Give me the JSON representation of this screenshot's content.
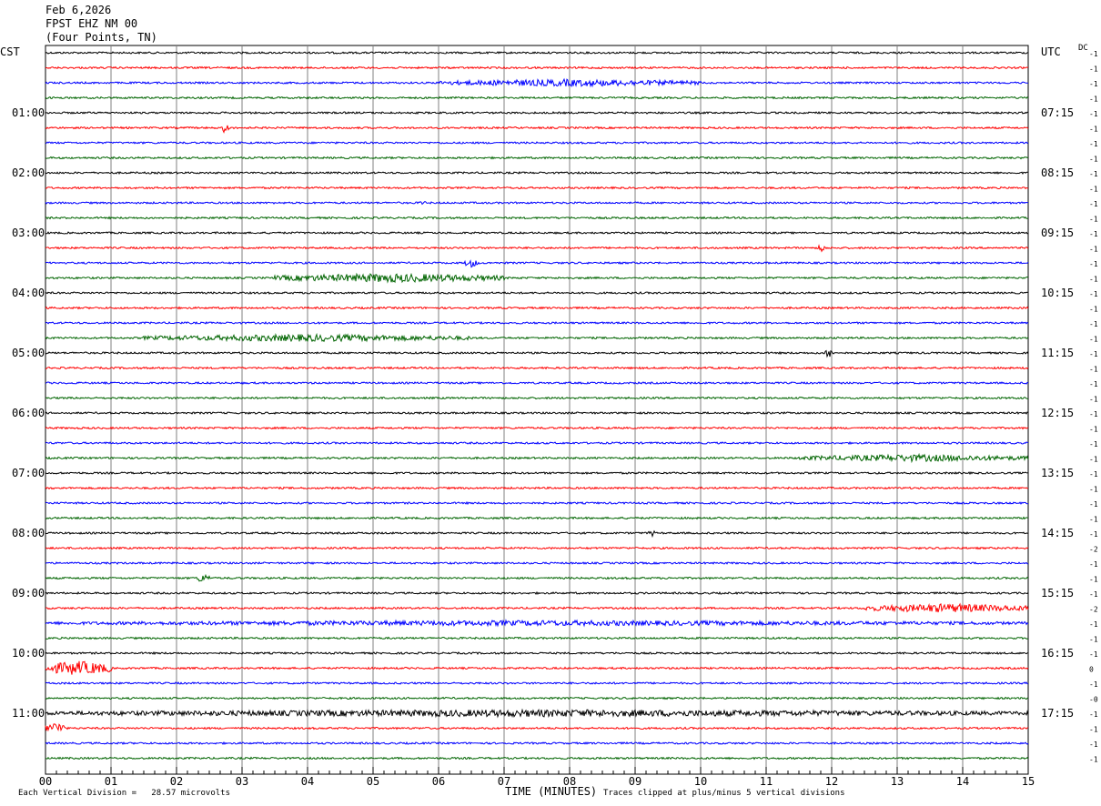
{
  "header": {
    "date": "Feb 6,2026",
    "station": "FPST EHZ NM 00",
    "location": "(Four Points, TN)"
  },
  "left_timezone": "CST",
  "right_timezone": "UTC",
  "dc_label": "DC",
  "footer": {
    "scale_note": "Each Vertical Division =   28.57 microvolts",
    "xlabel": "TIME (MINUTES)",
    "clip_note": "Traces clipped at plus/minus 5 vertical divisions"
  },
  "colors": {
    "black": "#000000",
    "red": "#ff0000",
    "blue": "#0000ff",
    "green": "#006400",
    "grid": "#808080"
  },
  "chart_data": {
    "type": "line",
    "xlabel": "TIME (MINUTES)",
    "xlim": [
      0,
      15
    ],
    "x_ticks": [
      "00",
      "01",
      "02",
      "03",
      "04",
      "05",
      "06",
      "07",
      "08",
      "09",
      "10",
      "11",
      "12",
      "13",
      "14",
      "15"
    ],
    "trace_colors": [
      "black",
      "red",
      "blue",
      "green"
    ],
    "trace_count": 48,
    "left_hour_labels": [
      "01:00",
      "02:00",
      "03:00",
      "04:00",
      "05:00",
      "06:00",
      "07:00",
      "08:00",
      "09:00",
      "10:00",
      "11:00"
    ],
    "right_hour_labels": [
      "07:15",
      "08:15",
      "09:15",
      "10:15",
      "11:15",
      "12:15",
      "13:15",
      "14:15",
      "15:15",
      "16:15",
      "17:15"
    ],
    "dc_offsets": [
      "-1",
      "-1",
      "-1",
      "-1",
      "-1",
      "-1",
      "-1",
      "-1",
      "-1",
      "-1",
      "-1",
      "-1",
      "-1",
      "-1",
      "-1",
      "-1",
      "-1",
      "-1",
      "-1",
      "-1",
      "-1",
      "-1",
      "-1",
      "-1",
      "-1",
      "-1",
      "-1",
      "-1",
      "-1",
      "-1",
      "-1",
      "-1",
      "-1",
      "-2",
      "-1",
      "-1",
      "-1",
      "-2",
      "-1",
      "-1",
      "-1",
      "0",
      "-1",
      "-0",
      "-1",
      "-1",
      "-1",
      "-1"
    ],
    "events": [
      {
        "trace": 2,
        "start": 6.0,
        "end": 10.0,
        "amp": 4
      },
      {
        "trace": 5,
        "start": 2.7,
        "end": 2.8,
        "amp": 7
      },
      {
        "trace": 10,
        "start": 5.7,
        "end": 5.8,
        "amp": 3
      },
      {
        "trace": 13,
        "start": 11.8,
        "end": 11.9,
        "amp": 6
      },
      {
        "trace": 14,
        "start": 6.4,
        "end": 6.6,
        "amp": 5
      },
      {
        "trace": 15,
        "start": 3.5,
        "end": 7.0,
        "amp": 5
      },
      {
        "trace": 19,
        "start": 1.5,
        "end": 6.5,
        "amp": 4
      },
      {
        "trace": 20,
        "start": 11.9,
        "end": 12.0,
        "amp": 9
      },
      {
        "trace": 27,
        "start": 11.5,
        "end": 15.0,
        "amp": 4
      },
      {
        "trace": 32,
        "start": 9.2,
        "end": 9.3,
        "amp": 4
      },
      {
        "trace": 35,
        "start": 2.3,
        "end": 2.5,
        "amp": 5
      },
      {
        "trace": 37,
        "start": 12.5,
        "end": 15.0,
        "amp": 5
      },
      {
        "trace": 38,
        "start": 0.0,
        "end": 15.0,
        "amp": 3
      },
      {
        "trace": 41,
        "start": 0.0,
        "end": 1.0,
        "amp": 8
      },
      {
        "trace": 44,
        "start": 0.0,
        "end": 15.0,
        "amp": 4
      },
      {
        "trace": 45,
        "start": 0.0,
        "end": 0.3,
        "amp": 7
      }
    ]
  }
}
